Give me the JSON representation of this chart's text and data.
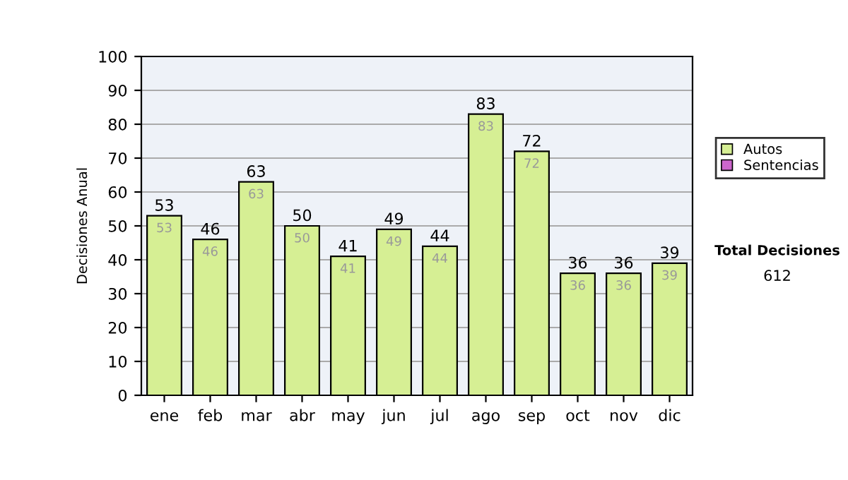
{
  "chart_data": {
    "type": "bar",
    "stacked": true,
    "ylabel": "Decisiones Anual",
    "categories": [
      "ene",
      "feb",
      "mar",
      "abr",
      "may",
      "jun",
      "jul",
      "ago",
      "sep",
      "oct",
      "nov",
      "dic"
    ],
    "series": [
      {
        "name": "Sentencias",
        "color": "#cc66cc",
        "values": [
          0,
          0,
          0,
          0,
          0,
          0,
          0,
          0,
          0,
          0,
          0,
          0
        ]
      },
      {
        "name": "Autos",
        "color": "#d6ef94",
        "values": [
          53,
          46,
          63,
          50,
          41,
          49,
          44,
          83,
          72,
          36,
          36,
          39
        ],
        "value_labels": [
          "53",
          "46",
          "63",
          "50",
          "41",
          "49",
          "44",
          "83",
          "72",
          "36",
          "36",
          "39"
        ]
      }
    ],
    "totals": [
      "53",
      "46",
      "63",
      "50",
      "41",
      "49",
      "44",
      "83",
      "72",
      "36",
      "36",
      "39"
    ],
    "ylim": [
      0,
      100
    ],
    "yticks": [
      0,
      10,
      20,
      30,
      40,
      50,
      60,
      70,
      80,
      90,
      100
    ],
    "grid": "y",
    "legend": "right",
    "annotations": [
      "Total Decisiones",
      "612"
    ]
  }
}
